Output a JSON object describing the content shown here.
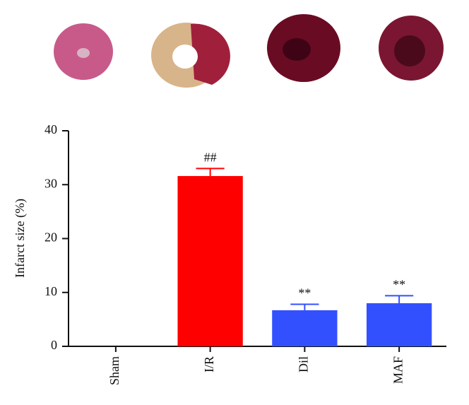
{
  "chart_data": {
    "type": "bar",
    "ylabel": "Infarct size (%)",
    "categories": [
      "Sham",
      "I/R",
      "Dil",
      "MAF"
    ],
    "values": [
      0,
      31.6,
      6.7,
      8.0
    ],
    "errors": [
      null,
      1.4,
      1.1,
      1.4
    ],
    "annotations": [
      null,
      "##",
      "**",
      "**"
    ],
    "colors": [
      "#ff0000",
      "#ff0000",
      "#3350ff",
      "#3350ff"
    ],
    "ylim": [
      0,
      40
    ],
    "yticks": [
      0,
      10,
      20,
      30,
      40
    ],
    "grid": false
  }
}
